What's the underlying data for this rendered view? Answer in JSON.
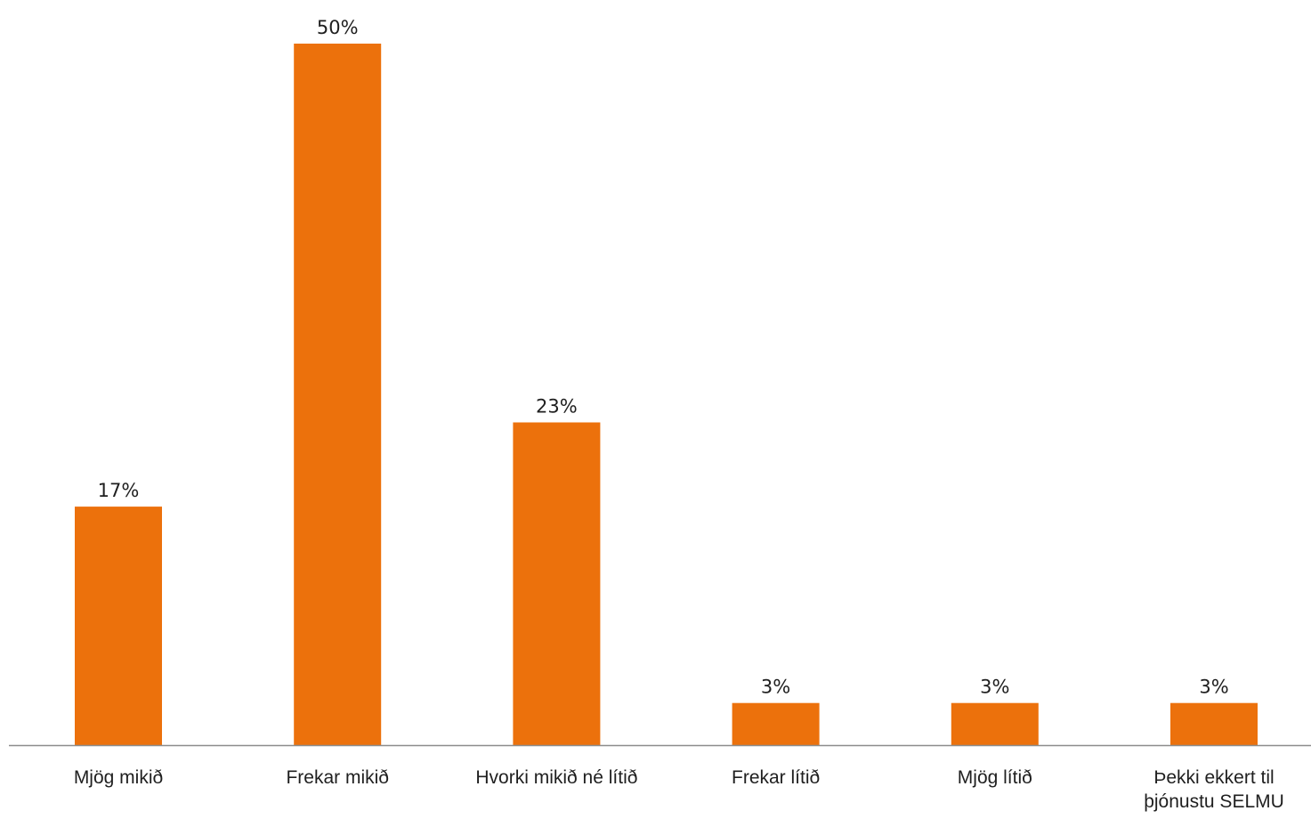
{
  "chart_data": {
    "type": "bar",
    "categories": [
      [
        "Mjög mikið"
      ],
      [
        "Frekar mikið"
      ],
      [
        "Hvorki mikið né lítið"
      ],
      [
        "Frekar lítið"
      ],
      [
        "Mjög lítið"
      ],
      [
        "Þekki ekkert til",
        "þjónustu SELMU"
      ]
    ],
    "values": [
      17,
      50,
      23,
      3,
      3,
      3
    ],
    "value_labels": [
      "17%",
      "50%",
      "23%",
      "3%",
      "3%",
      "3%"
    ],
    "ylim": [
      0,
      50
    ],
    "grid": false,
    "legend": "none",
    "colors": {
      "bar": "#EC710C",
      "axis": "#8c8c8c",
      "text": "#1f1f1f"
    }
  }
}
